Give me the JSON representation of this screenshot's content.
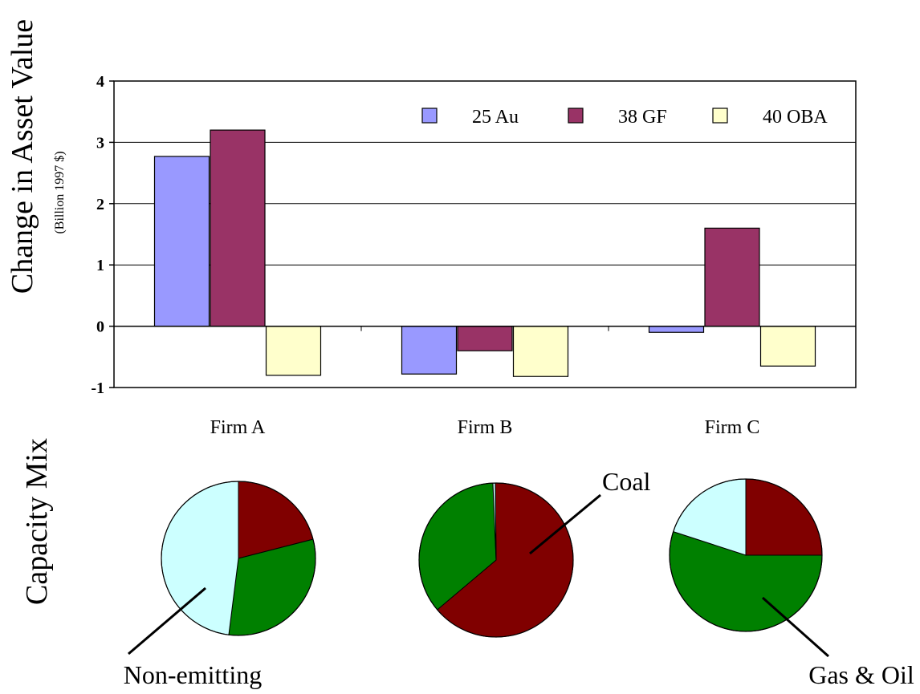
{
  "chart_data": [
    {
      "type": "bar",
      "ylabel": "Change in Asset Value",
      "ylabel_sub": "(Billion 1997 $)",
      "categories": [
        "Firm A",
        "Firm B",
        "Firm C"
      ],
      "ylim": [
        -1,
        4
      ],
      "yticks": [
        "-1",
        "0",
        "1",
        "2",
        "3",
        "4"
      ],
      "grid": true,
      "legend_position": "top-right",
      "series": [
        {
          "name": "25 Au",
          "color": "#9999ff",
          "values": [
            2.77,
            -0.78,
            -0.1
          ]
        },
        {
          "name": "38 GF",
          "color": "#993366",
          "values": [
            3.2,
            -0.4,
            1.6
          ]
        },
        {
          "name": "40 OBA",
          "color": "#ffffcc",
          "values": [
            -0.8,
            -0.82,
            -0.65
          ]
        }
      ]
    },
    {
      "type": "pie",
      "row_label": "Capacity Mix",
      "categories": [
        "Coal",
        "Gas & Oil",
        "Non-emitting"
      ],
      "colors": {
        "Coal": "#800000",
        "Gas & Oil": "#008000",
        "Non-emitting": "#ccffff"
      },
      "pies": [
        {
          "firm": "Firm A",
          "values": [
            21,
            31,
            48
          ]
        },
        {
          "firm": "Firm B",
          "values": [
            64,
            35.5,
            0.5
          ]
        },
        {
          "firm": "Firm C",
          "values": [
            25,
            55,
            20
          ]
        }
      ],
      "callouts": [
        {
          "label": "Coal",
          "firm": "Firm B",
          "category": "Coal"
        },
        {
          "label": "Gas & Oil",
          "firm": "Firm C",
          "category": "Gas & Oil"
        },
        {
          "label": "Non-emitting",
          "firm": "Firm A",
          "category": "Non-emitting"
        }
      ]
    }
  ]
}
